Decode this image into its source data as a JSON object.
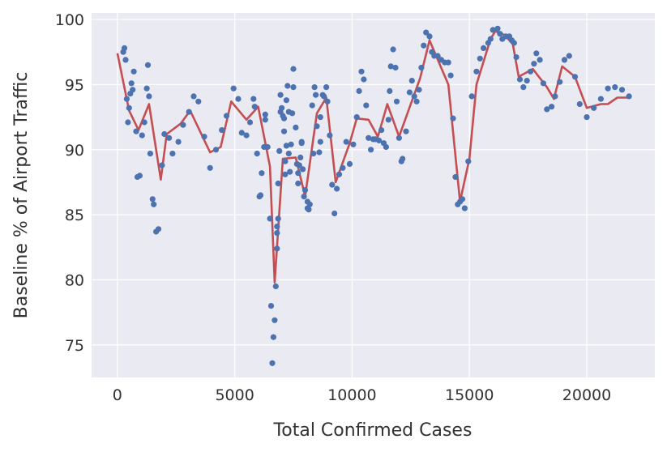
{
  "chart_data": {
    "type": "scatter",
    "xlabel": "Total Confirmed Cases",
    "ylabel": "Baseline % of Airport Traffic",
    "xlim": [
      -1100,
      22900
    ],
    "ylim": [
      72.5,
      100.5
    ],
    "xticks": [
      0,
      5000,
      10000,
      15000,
      20000
    ],
    "yticks": [
      75,
      80,
      85,
      90,
      95,
      100
    ],
    "grid": true,
    "colors": {
      "background": "#eaeaf2",
      "grid": "#ffffff",
      "points": "#4c72b0",
      "line": "#c44e52"
    },
    "series": [
      {
        "kind": "scatter",
        "points": [
          [
            250,
            97.5
          ],
          [
            300,
            97.8
          ],
          [
            350,
            96.9
          ],
          [
            400,
            93.9
          ],
          [
            450,
            92.1
          ],
          [
            500,
            93.2
          ],
          [
            550,
            94.3
          ],
          [
            600,
            95.1
          ],
          [
            650,
            94.6
          ],
          [
            700,
            96.0
          ],
          [
            800,
            91.4
          ],
          [
            850,
            87.9
          ],
          [
            950,
            88.0
          ],
          [
            1050,
            91.1
          ],
          [
            1150,
            92.1
          ],
          [
            1250,
            94.7
          ],
          [
            1300,
            96.5
          ],
          [
            1350,
            94.1
          ],
          [
            1400,
            89.7
          ],
          [
            1500,
            86.2
          ],
          [
            1550,
            85.8
          ],
          [
            1650,
            83.7
          ],
          [
            1750,
            83.9
          ],
          [
            1900,
            88.8
          ],
          [
            2000,
            91.2
          ],
          [
            2200,
            90.9
          ],
          [
            2350,
            89.7
          ],
          [
            2600,
            90.6
          ],
          [
            2800,
            91.9
          ],
          [
            3050,
            92.9
          ],
          [
            3250,
            94.1
          ],
          [
            3450,
            93.7
          ],
          [
            3700,
            91.0
          ],
          [
            3950,
            88.6
          ],
          [
            4200,
            90.0
          ],
          [
            4450,
            91.5
          ],
          [
            4650,
            92.6
          ],
          [
            4950,
            94.7
          ],
          [
            5150,
            93.9
          ],
          [
            5300,
            91.3
          ],
          [
            5500,
            91.1
          ],
          [
            5650,
            92.1
          ],
          [
            5800,
            93.9
          ],
          [
            5850,
            93.3
          ],
          [
            5950,
            89.7
          ],
          [
            6050,
            86.4
          ],
          [
            6100,
            86.5
          ],
          [
            6150,
            88.2
          ],
          [
            6250,
            90.2
          ],
          [
            6300,
            92.3
          ],
          [
            6300,
            92.7
          ],
          [
            6400,
            90.2
          ],
          [
            6500,
            84.7
          ],
          [
            6550,
            78.0
          ],
          [
            6600,
            73.6
          ],
          [
            6650,
            75.6
          ],
          [
            6700,
            76.9
          ],
          [
            6750,
            79.5
          ],
          [
            6800,
            82.4
          ],
          [
            6800,
            83.6
          ],
          [
            6800,
            84.1
          ],
          [
            6850,
            84.7
          ],
          [
            6850,
            87.4
          ],
          [
            6900,
            89.9
          ],
          [
            6950,
            92.9
          ],
          [
            6950,
            94.2
          ],
          [
            7000,
            93.2
          ],
          [
            7050,
            92.6
          ],
          [
            7100,
            91.4
          ],
          [
            7100,
            92.4
          ],
          [
            7150,
            88.1
          ],
          [
            7150,
            89.1
          ],
          [
            7200,
            90.3
          ],
          [
            7200,
            93.8
          ],
          [
            7250,
            94.9
          ],
          [
            7300,
            89.7
          ],
          [
            7300,
            92.9
          ],
          [
            7350,
            88.3
          ],
          [
            7400,
            90.4
          ],
          [
            7450,
            92.8
          ],
          [
            7500,
            94.8
          ],
          [
            7500,
            96.2
          ],
          [
            7600,
            91.7
          ],
          [
            7650,
            88.9
          ],
          [
            7700,
            87.4
          ],
          [
            7700,
            88.2
          ],
          [
            7750,
            88.8
          ],
          [
            7800,
            89.4
          ],
          [
            7850,
            90.6
          ],
          [
            7850,
            90.5
          ],
          [
            7900,
            88.5
          ],
          [
            7950,
            86.4
          ],
          [
            8000,
            86.9
          ],
          [
            8100,
            86.0
          ],
          [
            8100,
            85.5
          ],
          [
            8150,
            85.4
          ],
          [
            8200,
            85.8
          ],
          [
            8300,
            93.4
          ],
          [
            8350,
            89.7
          ],
          [
            8400,
            94.8
          ],
          [
            8450,
            94.2
          ],
          [
            8500,
            91.8
          ],
          [
            8600,
            89.8
          ],
          [
            8650,
            92.5
          ],
          [
            8650,
            90.6
          ],
          [
            8750,
            94.2
          ],
          [
            8800,
            94.1
          ],
          [
            8900,
            94.8
          ],
          [
            8950,
            93.7
          ],
          [
            9050,
            91.1
          ],
          [
            9150,
            87.3
          ],
          [
            9250,
            85.1
          ],
          [
            9350,
            87.0
          ],
          [
            9450,
            88.1
          ],
          [
            9600,
            88.6
          ],
          [
            9750,
            90.6
          ],
          [
            9900,
            88.9
          ],
          [
            10050,
            90.4
          ],
          [
            10200,
            92.5
          ],
          [
            10300,
            94.5
          ],
          [
            10400,
            96.0
          ],
          [
            10500,
            95.4
          ],
          [
            10600,
            93.4
          ],
          [
            10700,
            90.9
          ],
          [
            10800,
            90.0
          ],
          [
            10900,
            90.8
          ],
          [
            11000,
            90.8
          ],
          [
            11150,
            90.7
          ],
          [
            11250,
            91.5
          ],
          [
            11350,
            90.5
          ],
          [
            11450,
            90.2
          ],
          [
            11550,
            92.3
          ],
          [
            11600,
            94.5
          ],
          [
            11650,
            96.4
          ],
          [
            11750,
            97.7
          ],
          [
            11850,
            96.3
          ],
          [
            11900,
            93.7
          ],
          [
            12000,
            90.9
          ],
          [
            12100,
            89.1
          ],
          [
            12150,
            89.3
          ],
          [
            12300,
            91.4
          ],
          [
            12450,
            94.4
          ],
          [
            12550,
            95.3
          ],
          [
            12650,
            94.1
          ],
          [
            12750,
            93.7
          ],
          [
            12850,
            94.6
          ],
          [
            12950,
            96.3
          ],
          [
            13050,
            98.0
          ],
          [
            13150,
            99.0
          ],
          [
            13300,
            98.7
          ],
          [
            13400,
            97.5
          ],
          [
            13500,
            97.2
          ],
          [
            13650,
            97.2
          ],
          [
            13800,
            96.9
          ],
          [
            13950,
            96.7
          ],
          [
            14100,
            96.7
          ],
          [
            14200,
            95.7
          ],
          [
            14300,
            92.4
          ],
          [
            14400,
            87.9
          ],
          [
            14500,
            85.8
          ],
          [
            14600,
            86.0
          ],
          [
            14700,
            86.2
          ],
          [
            14800,
            85.5
          ],
          [
            14950,
            89.1
          ],
          [
            15100,
            94.1
          ],
          [
            15300,
            96.0
          ],
          [
            15450,
            97.0
          ],
          [
            15600,
            97.8
          ],
          [
            15800,
            98.2
          ],
          [
            15900,
            98.5
          ],
          [
            16000,
            99.2
          ],
          [
            16200,
            99.3
          ],
          [
            16300,
            98.9
          ],
          [
            16400,
            98.5
          ],
          [
            16550,
            98.7
          ],
          [
            16700,
            98.7
          ],
          [
            16800,
            98.4
          ],
          [
            16900,
            98.2
          ],
          [
            17000,
            97.1
          ],
          [
            17150,
            95.4
          ],
          [
            17300,
            94.8
          ],
          [
            17450,
            95.3
          ],
          [
            17600,
            96.0
          ],
          [
            17750,
            96.6
          ],
          [
            17850,
            97.4
          ],
          [
            18000,
            96.9
          ],
          [
            18150,
            95.1
          ],
          [
            18300,
            93.1
          ],
          [
            18500,
            93.3
          ],
          [
            18650,
            94.1
          ],
          [
            18850,
            95.2
          ],
          [
            19050,
            96.9
          ],
          [
            19250,
            97.2
          ],
          [
            19500,
            95.6
          ],
          [
            19700,
            93.5
          ],
          [
            20000,
            92.5
          ],
          [
            20300,
            93.2
          ],
          [
            20600,
            93.9
          ],
          [
            20900,
            94.7
          ],
          [
            21200,
            94.8
          ],
          [
            21500,
            94.6
          ],
          [
            21800,
            94.1
          ]
        ]
      },
      {
        "kind": "line",
        "points": [
          [
            0,
            97.4
          ],
          [
            500,
            93.0
          ],
          [
            900,
            91.5
          ],
          [
            1350,
            93.5
          ],
          [
            1850,
            87.7
          ],
          [
            2100,
            91.2
          ],
          [
            2700,
            92.0
          ],
          [
            3100,
            93.0
          ],
          [
            3950,
            89.8
          ],
          [
            4400,
            90.2
          ],
          [
            4850,
            93.7
          ],
          [
            5500,
            92.3
          ],
          [
            6000,
            93.3
          ],
          [
            6500,
            88.7
          ],
          [
            6700,
            79.8
          ],
          [
            7050,
            89.3
          ],
          [
            7600,
            89.4
          ],
          [
            8000,
            86.4
          ],
          [
            8500,
            92.8
          ],
          [
            8900,
            94.0
          ],
          [
            9300,
            87.5
          ],
          [
            9900,
            90.5
          ],
          [
            10200,
            92.4
          ],
          [
            10700,
            92.3
          ],
          [
            11100,
            91.0
          ],
          [
            11500,
            93.5
          ],
          [
            12000,
            91.0
          ],
          [
            12900,
            95.5
          ],
          [
            13300,
            98.4
          ],
          [
            14100,
            95.0
          ],
          [
            14600,
            86.0
          ],
          [
            15000,
            89.3
          ],
          [
            15300,
            95.0
          ],
          [
            15900,
            98.5
          ],
          [
            16100,
            99.1
          ],
          [
            16500,
            98.8
          ],
          [
            16850,
            98.1
          ],
          [
            17100,
            95.6
          ],
          [
            17700,
            96.2
          ],
          [
            18300,
            94.8
          ],
          [
            18600,
            93.9
          ],
          [
            18950,
            96.4
          ],
          [
            19500,
            95.6
          ],
          [
            20000,
            93.2
          ],
          [
            20600,
            93.5
          ],
          [
            20900,
            93.5
          ],
          [
            21300,
            94.0
          ],
          [
            21800,
            94.0
          ]
        ]
      }
    ]
  }
}
